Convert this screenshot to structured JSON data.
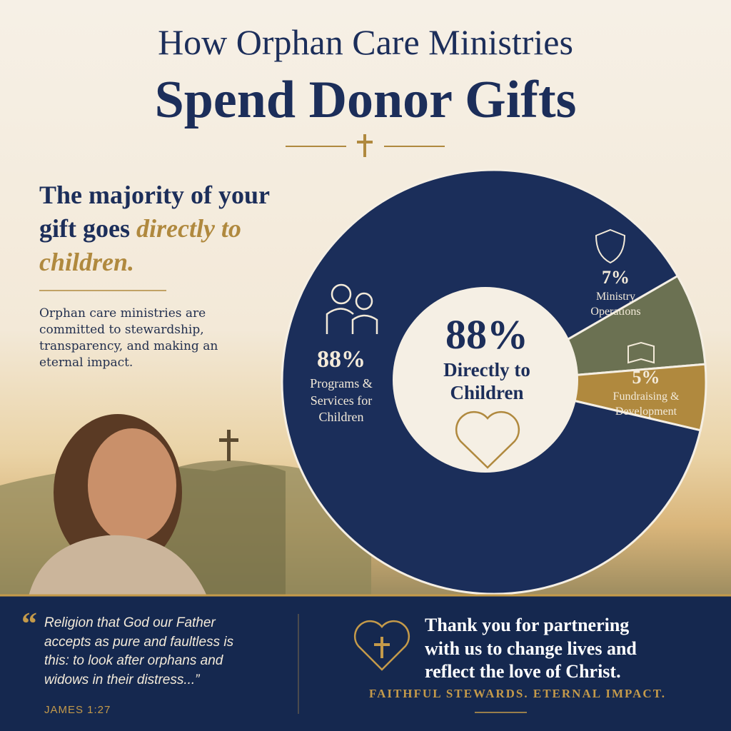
{
  "title_line1": "How Orphan Care Ministries",
  "title_line2": "Spend Donor Gifts",
  "headline": {
    "text": "The majority of your gift goes",
    "emphasis": "directly to children."
  },
  "body": "Orphan care ministries are committed to stewardship, transparency, and making an eternal impact.",
  "chart_data": {
    "type": "pie",
    "categories": [
      "Programs & Services for Children",
      "Ministry Operations",
      "Fundraising & Development"
    ],
    "values": [
      88,
      7,
      5
    ],
    "value_labels": [
      "88%",
      "7%",
      "5%"
    ],
    "colors": [
      "#1b2e5a",
      "#6b7152",
      "#b0893e"
    ],
    "center_label": "Directly to Children"
  },
  "quote": {
    "mark": "“",
    "text": "Religion that God our Father accepts as pure and faultless is this: to look after orphans and widows in their distress...”",
    "citation": "JAMES 1:27"
  },
  "thanks": "Thank you for partnering with us to change lives and reflect the love of Christ.",
  "tagline": "FAITHFUL STEWARDS. ETERNAL IMPACT."
}
